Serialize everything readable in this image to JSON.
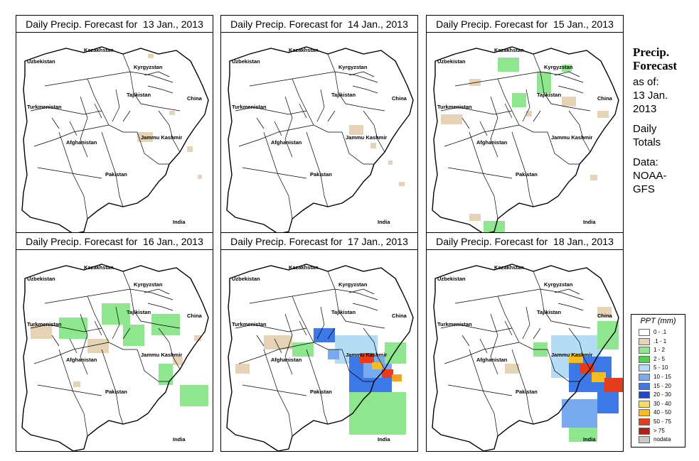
{
  "panels": [
    {
      "title": "Daily Precip. Forecast for  13 Jan., 2013",
      "precip": [
        [
          215,
          110,
          8,
          6,
          "#e6d2b4"
        ],
        [
          170,
          140,
          22,
          14,
          "#e6d2b4"
        ],
        [
          240,
          160,
          8,
          8,
          "#e6d2b4"
        ],
        [
          255,
          200,
          6,
          6,
          "#e6d2b4"
        ],
        [
          185,
          30,
          8,
          6,
          "#e6d2b4"
        ]
      ]
    },
    {
      "title": "Daily Precip. Forecast for  14 Jan., 2013",
      "precip": [
        [
          180,
          130,
          20,
          14,
          "#e6d2b4"
        ],
        [
          210,
          155,
          8,
          8,
          "#e6d2b4"
        ],
        [
          235,
          180,
          6,
          6,
          "#e6d2b4"
        ],
        [
          250,
          210,
          8,
          6,
          "#e6d2b4"
        ]
      ]
    },
    {
      "title": "Daily Precip. Forecast for  15 Jan., 2013",
      "precip": [
        [
          100,
          35,
          30,
          20,
          "#8ee68e"
        ],
        [
          155,
          55,
          20,
          30,
          "#8ee68e"
        ],
        [
          190,
          45,
          14,
          10,
          "#8ee68e"
        ],
        [
          120,
          85,
          20,
          20,
          "#8ee68e"
        ],
        [
          60,
          65,
          16,
          10,
          "#e6d2b4"
        ],
        [
          20,
          115,
          30,
          14,
          "#e6d2b4"
        ],
        [
          190,
          90,
          20,
          14,
          "#e6d2b4"
        ],
        [
          240,
          110,
          16,
          10,
          "#e6d2b4"
        ],
        [
          80,
          265,
          30,
          20,
          "#8ee68e"
        ],
        [
          60,
          255,
          16,
          10,
          "#e6d2b4"
        ],
        [
          230,
          200,
          10,
          8,
          "#e6d2b4"
        ],
        [
          140,
          110,
          8,
          8,
          "#e6d2b4"
        ]
      ]
    },
    {
      "title": "Daily Precip. Forecast for  16 Jan., 2013",
      "precip": [
        [
          120,
          75,
          40,
          30,
          "#8ee68e"
        ],
        [
          60,
          95,
          40,
          30,
          "#8ee68e"
        ],
        [
          150,
          105,
          30,
          30,
          "#8ee68e"
        ],
        [
          190,
          90,
          40,
          30,
          "#8ee68e"
        ],
        [
          20,
          105,
          30,
          20,
          "#e6d2b4"
        ],
        [
          100,
          125,
          30,
          20,
          "#e6d2b4"
        ],
        [
          200,
          160,
          20,
          30,
          "#8ee68e"
        ],
        [
          230,
          190,
          40,
          30,
          "#8ee68e"
        ],
        [
          220,
          150,
          14,
          12,
          "#e6d2b4"
        ],
        [
          250,
          120,
          10,
          8,
          "#e6d2b4"
        ],
        [
          80,
          185,
          10,
          8,
          "#e6d2b4"
        ]
      ]
    },
    {
      "title": "Daily Precip. Forecast for  17 Jan., 2013",
      "precip": [
        [
          160,
          120,
          60,
          40,
          "#b4dcf5"
        ],
        [
          180,
          150,
          60,
          50,
          "#3c78e6"
        ],
        [
          200,
          150,
          40,
          30,
          "#78aaf0"
        ],
        [
          195,
          145,
          20,
          14,
          "#e63c1e"
        ],
        [
          212,
          158,
          14,
          10,
          "#f5be1e"
        ],
        [
          226,
          168,
          16,
          12,
          "#e63c1e"
        ],
        [
          240,
          175,
          14,
          10,
          "#f5a01e"
        ],
        [
          180,
          200,
          80,
          60,
          "#8ee68e"
        ],
        [
          230,
          130,
          30,
          30,
          "#8ee68e"
        ],
        [
          130,
          110,
          30,
          20,
          "#3c78e6"
        ],
        [
          150,
          140,
          16,
          14,
          "#78aaf0"
        ],
        [
          100,
          130,
          30,
          20,
          "#8ee68e"
        ],
        [
          60,
          120,
          40,
          20,
          "#e6d2b4"
        ],
        [
          200,
          230,
          40,
          30,
          "#8ee68e"
        ],
        [
          20,
          160,
          20,
          14,
          "#e6d2b4"
        ]
      ]
    },
    {
      "title": "Daily Precip. Forecast for  18 Jan., 2013",
      "precip": [
        [
          175,
          120,
          70,
          60,
          "#b4dcf5"
        ],
        [
          200,
          150,
          60,
          50,
          "#3c78e6"
        ],
        [
          200,
          145,
          20,
          14,
          "#f5be1e"
        ],
        [
          215,
          160,
          20,
          14,
          "#e63c1e"
        ],
        [
          232,
          172,
          20,
          14,
          "#f5be1e"
        ],
        [
          250,
          180,
          26,
          20,
          "#e63c1e"
        ],
        [
          240,
          200,
          30,
          30,
          "#3c78e6"
        ],
        [
          240,
          100,
          30,
          40,
          "#8ee68e"
        ],
        [
          190,
          210,
          50,
          40,
          "#78aaf0"
        ],
        [
          200,
          250,
          40,
          20,
          "#8ee68e"
        ],
        [
          150,
          130,
          20,
          20,
          "#8ee68e"
        ],
        [
          110,
          160,
          20,
          14,
          "#e6d2b4"
        ],
        [
          240,
          80,
          20,
          14,
          "#e6d2b4"
        ]
      ]
    }
  ],
  "map_labels": {
    "kazakhstan": "Kazakhstan",
    "uzbekistan": "Uzbekistan",
    "kyrgyzstan": "Kyrgyzstan",
    "tajikistan": "Tajikistan",
    "turkmenistan": "Turkmenistan",
    "china": "China",
    "jammu_kashmir": "Jammu Kashmir",
    "afghanistan": "Afghanistan",
    "pakistan": "Pakistan",
    "india": "India"
  },
  "sidebar": {
    "title_line1": "Precip.",
    "title_line2": "Forecast",
    "asof_line1": "as of:",
    "asof_line2": "13 Jan.",
    "asof_line3": "2013",
    "totals_line1": "Daily",
    "totals_line2": "Totals",
    "data_line1": "Data:",
    "data_line2": "NOAA-",
    "data_line3": "GFS"
  },
  "legend": {
    "title": "PPT (mm)",
    "items": [
      {
        "label": "0 - .1",
        "color": "#ffffff"
      },
      {
        "label": ".1 - 1",
        "color": "#e6d2b4"
      },
      {
        "label": "1 - 2",
        "color": "#8ee68e"
      },
      {
        "label": "2 - 5",
        "color": "#50d250"
      },
      {
        "label": "5 - 10",
        "color": "#b4dcf5"
      },
      {
        "label": "10 - 15",
        "color": "#78aaf0"
      },
      {
        "label": "15 - 20",
        "color": "#3c78e6"
      },
      {
        "label": "20 - 30",
        "color": "#1e46c8"
      },
      {
        "label": "30 - 40",
        "color": "#f5dc64"
      },
      {
        "label": "40 - 50",
        "color": "#f5be1e"
      },
      {
        "label": "50 - 75",
        "color": "#e63c1e"
      },
      {
        "label": "> 75",
        "color": "#b41e14"
      },
      {
        "label": "nodata",
        "color": "#c8c8c8"
      }
    ]
  }
}
